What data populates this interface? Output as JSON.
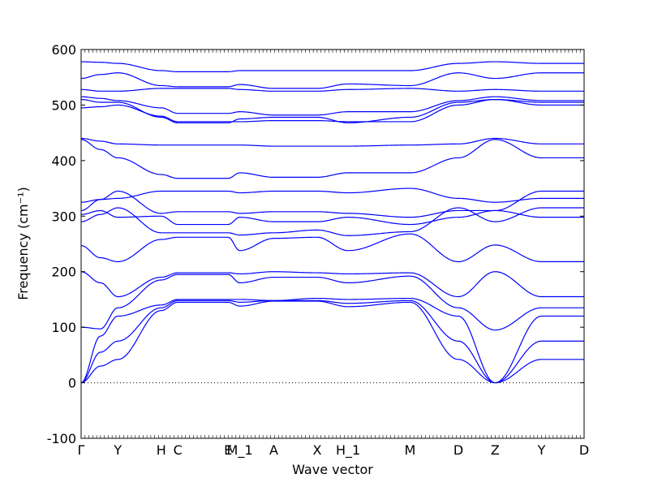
{
  "chart_data": {
    "type": "line",
    "title": "",
    "xlabel": "Wave vector",
    "ylabel": "Frequency (cm⁻¹)",
    "ylim": [
      -100,
      600
    ],
    "yticks": [
      -100,
      0,
      100,
      200,
      300,
      400,
      500,
      600
    ],
    "xlim": [
      0,
      13
    ],
    "high_symmetry_points": [
      {
        "label": "Γ",
        "x": 0.0
      },
      {
        "label": "Y",
        "x": 0.95
      },
      {
        "label": "H",
        "x": 2.07
      },
      {
        "label": "C",
        "x": 2.5
      },
      {
        "label": "E",
        "x": 3.8
      },
      {
        "label": "M_1",
        "x": 4.1
      },
      {
        "label": "A",
        "x": 4.98
      },
      {
        "label": "X",
        "x": 6.1
      },
      {
        "label": "H_1",
        "x": 6.9
      },
      {
        "label": "M",
        "x": 8.5
      },
      {
        "label": "D",
        "x": 9.75
      },
      {
        "label": "Z",
        "x": 10.7
      },
      {
        "label": "Y",
        "x": 11.9
      },
      {
        "label": "D",
        "x": 13.0
      }
    ],
    "zero_line": true,
    "line_color": "#0000ff",
    "kx": [
      0,
      0.5,
      0.95,
      2.07,
      2.5,
      3.8,
      4.1,
      4.98,
      6.1,
      6.9,
      8.5,
      9.75,
      10.7,
      11.9,
      13.0
    ],
    "series": [
      {
        "values": [
          0,
          30,
          42,
          130,
          145,
          145,
          138,
          147,
          147,
          137,
          145,
          42,
          0,
          42,
          42
        ]
      },
      {
        "values": [
          0,
          55,
          75,
          135,
          148,
          148,
          145,
          148,
          148,
          143,
          148,
          75,
          0,
          75,
          75
        ]
      },
      {
        "values": [
          0,
          84,
          120,
          140,
          150,
          150,
          150,
          148,
          152,
          150,
          152,
          120,
          0,
          120,
          120
        ]
      },
      {
        "values": [
          100,
          97,
          135,
          185,
          195,
          195,
          180,
          190,
          190,
          180,
          192,
          135,
          95,
          135,
          135
        ]
      },
      {
        "values": [
          200,
          180,
          155,
          190,
          198,
          198,
          196,
          200,
          198,
          196,
          198,
          155,
          200,
          155,
          155
        ]
      },
      {
        "values": [
          247,
          225,
          218,
          258,
          262,
          262,
          238,
          260,
          262,
          238,
          268,
          218,
          248,
          218,
          218
        ]
      },
      {
        "values": [
          290,
          303,
          315,
          270,
          270,
          270,
          266,
          270,
          275,
          265,
          272,
          315,
          290,
          315,
          315
        ]
      },
      {
        "values": [
          303,
          310,
          298,
          300,
          285,
          285,
          298,
          290,
          290,
          298,
          285,
          298,
          310,
          298,
          298
        ]
      },
      {
        "values": [
          310,
          330,
          345,
          305,
          308,
          308,
          305,
          308,
          308,
          305,
          298,
          310,
          310,
          345,
          345
        ]
      },
      {
        "values": [
          325,
          330,
          332,
          345,
          345,
          345,
          342,
          345,
          345,
          342,
          350,
          332,
          325,
          332,
          332
        ]
      },
      {
        "values": [
          438,
          420,
          405,
          375,
          368,
          368,
          378,
          370,
          370,
          378,
          378,
          405,
          438,
          405,
          405
        ]
      },
      {
        "values": [
          440,
          435,
          430,
          428,
          428,
          428,
          428,
          426,
          426,
          426,
          428,
          430,
          440,
          430,
          430
        ]
      },
      {
        "values": [
          495,
          497,
          500,
          480,
          470,
          470,
          470,
          472,
          472,
          470,
          470,
          500,
          510,
          500,
          500
        ]
      },
      {
        "values": [
          510,
          505,
          505,
          478,
          468,
          468,
          475,
          478,
          478,
          468,
          478,
          505,
          510,
          505,
          505
        ]
      },
      {
        "values": [
          515,
          512,
          508,
          495,
          485,
          485,
          488,
          482,
          482,
          488,
          488,
          508,
          515,
          508,
          508
        ]
      },
      {
        "values": [
          528,
          525,
          525,
          530,
          530,
          530,
          528,
          525,
          525,
          528,
          530,
          525,
          528,
          525,
          525
        ]
      },
      {
        "values": [
          548,
          555,
          558,
          535,
          533,
          533,
          537,
          530,
          530,
          538,
          535,
          558,
          548,
          558,
          558
        ]
      },
      {
        "values": [
          578,
          577,
          575,
          562,
          560,
          560,
          562,
          562,
          562,
          562,
          562,
          575,
          578,
          575,
          575
        ]
      }
    ]
  }
}
